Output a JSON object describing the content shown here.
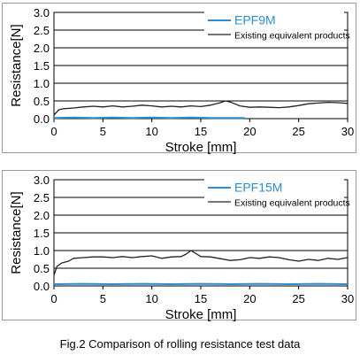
{
  "caption": "Fig.2 Comparison of rolling resistance test data",
  "colors": {
    "blue": "#2d8ccf",
    "black": "#222222",
    "grid": "#000000"
  },
  "chart_data": [
    {
      "type": "line",
      "xlabel": "Stroke [mm]",
      "ylabel": "Resistance[N]",
      "xlim": [
        0,
        30
      ],
      "ylim": [
        0,
        3.0
      ],
      "xticks": [
        "0",
        "5",
        "10",
        "15",
        "20",
        "25",
        "30"
      ],
      "yticks": [
        "0.0",
        "0.5",
        "1.0",
        "1.5",
        "2.0",
        "2.5",
        "3.0"
      ],
      "grid": "horizontal",
      "legend": "top-right",
      "series": [
        {
          "name": "EPF9M",
          "color": "#2d8ccf",
          "x": [
            0,
            2,
            4,
            6,
            8,
            10,
            12,
            14,
            16,
            18,
            19.5
          ],
          "y": [
            0.02,
            0.03,
            0.02,
            0.03,
            0.02,
            0.03,
            0.02,
            0.03,
            0.02,
            0.02,
            0.02
          ]
        },
        {
          "name": "Existing equivalent products",
          "color": "#222222",
          "x": [
            0,
            0.5,
            1,
            2,
            3,
            4,
            5,
            6,
            7,
            8,
            9,
            10,
            11,
            12,
            13,
            14,
            15,
            16,
            17,
            17.5,
            18,
            19,
            20,
            21,
            22,
            23,
            24,
            25,
            26,
            27,
            28,
            29,
            29.5,
            30
          ],
          "y": [
            0.1,
            0.25,
            0.28,
            0.3,
            0.33,
            0.35,
            0.33,
            0.36,
            0.33,
            0.35,
            0.38,
            0.36,
            0.33,
            0.35,
            0.33,
            0.36,
            0.34,
            0.38,
            0.45,
            0.5,
            0.47,
            0.36,
            0.32,
            0.33,
            0.32,
            0.31,
            0.33,
            0.37,
            0.42,
            0.44,
            0.46,
            0.45,
            0.44,
            0.43
          ]
        }
      ]
    },
    {
      "type": "line",
      "xlabel": "Stroke [mm]",
      "ylabel": "Resistance[N]",
      "xlim": [
        0,
        30
      ],
      "ylim": [
        0,
        3.0
      ],
      "xticks": [
        "0",
        "5",
        "10",
        "15",
        "20",
        "25",
        "30"
      ],
      "yticks": [
        "0.0",
        "0.5",
        "1.0",
        "1.5",
        "2.0",
        "2.5",
        "3.0"
      ],
      "grid": "horizontal",
      "legend": "top-right",
      "series": [
        {
          "name": "EPF15M",
          "color": "#2d8ccf",
          "x": [
            0,
            3,
            6,
            9,
            12,
            15,
            18,
            21,
            24,
            27,
            30
          ],
          "y": [
            0.05,
            0.06,
            0.05,
            0.06,
            0.05,
            0.06,
            0.05,
            0.06,
            0.05,
            0.06,
            0.05
          ]
        },
        {
          "name": "Existing equivalent products",
          "color": "#222222",
          "x": [
            0,
            0.3,
            0.8,
            1.5,
            2,
            3,
            4,
            5,
            6,
            7,
            8,
            9,
            10,
            11,
            12,
            13,
            13.5,
            14,
            15,
            16,
            17,
            18,
            19,
            20,
            21,
            22,
            23,
            24,
            25,
            26,
            27,
            28,
            29,
            30
          ],
          "y": [
            0.3,
            0.55,
            0.65,
            0.7,
            0.78,
            0.8,
            0.82,
            0.82,
            0.8,
            0.83,
            0.8,
            0.83,
            0.85,
            0.78,
            0.82,
            0.83,
            0.9,
            1.0,
            0.83,
            0.82,
            0.77,
            0.72,
            0.74,
            0.8,
            0.78,
            0.82,
            0.8,
            0.74,
            0.7,
            0.75,
            0.72,
            0.78,
            0.75,
            0.8
          ]
        }
      ]
    }
  ]
}
